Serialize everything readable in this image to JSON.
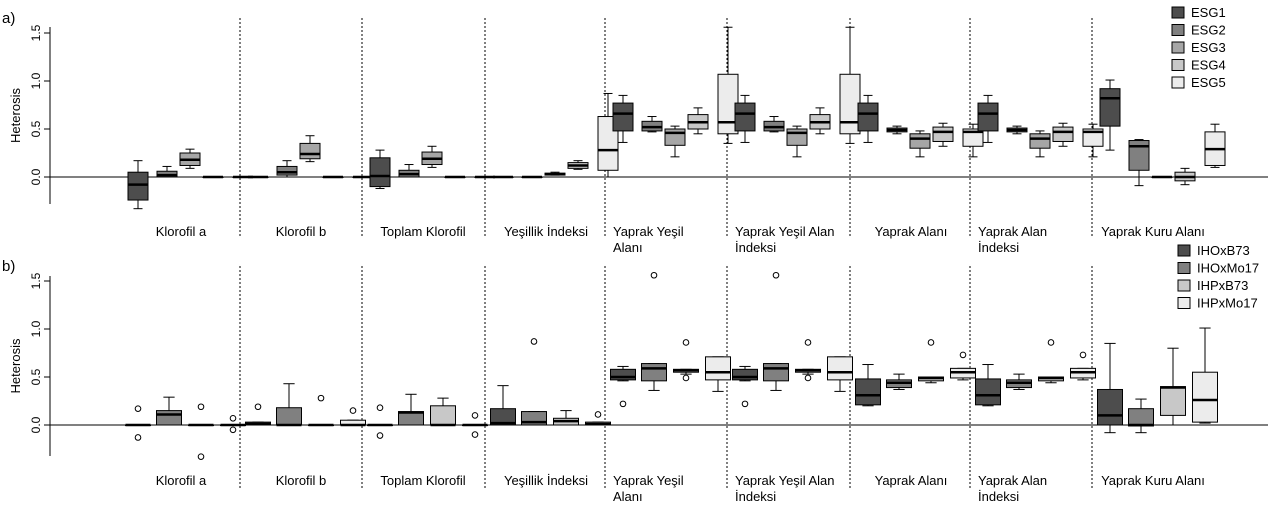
{
  "chart_data": [
    {
      "type": "box",
      "panel_label": "a)",
      "ylabel": "Heterosis",
      "ylim": [
        -0.3,
        1.6
      ],
      "yticks": [
        "0.0",
        "0.5",
        "1.0",
        "1.5"
      ],
      "ytick_values": [
        0,
        0.5,
        1.0,
        1.5
      ],
      "legend_position": "top-right",
      "grid": false,
      "categories": [
        [
          "Klorofil a"
        ],
        [
          "Klorofil b"
        ],
        [
          "Toplam Klorofil"
        ],
        [
          "Yeşillik İndeksi"
        ],
        [
          "Yaprak Yeşil",
          "Alanı"
        ],
        [
          "Yaprak Yeşil Alan",
          "İndeksi"
        ],
        [
          "Yaprak Alanı"
        ],
        [
          "Yaprak Alan",
          "İndeksi"
        ],
        [
          "Yaprak Kuru Alanı"
        ]
      ],
      "series": [
        {
          "name": "ESG1",
          "color": "#4d4d4d"
        },
        {
          "name": "ESG2",
          "color": "#808080"
        },
        {
          "name": "ESG3",
          "color": "#a6a6a6"
        },
        {
          "name": "ESG4",
          "color": "#c8c8c8"
        },
        {
          "name": "ESG5",
          "color": "#ececec"
        }
      ],
      "boxes": [
        [
          {
            "min": -0.33,
            "q1": -0.24,
            "median": -0.08,
            "q3": 0.05,
            "max": 0.17,
            "outliers": []
          },
          {
            "min": 0.0,
            "q1": 0.0,
            "median": 0.02,
            "q3": 0.06,
            "max": 0.11,
            "outliers": []
          },
          {
            "min": 0.09,
            "q1": 0.12,
            "median": 0.18,
            "q3": 0.25,
            "max": 0.29,
            "outliers": []
          },
          {
            "min": 0.0,
            "q1": 0.0,
            "median": 0.0,
            "q3": 0.0,
            "max": 0.0,
            "outliers": []
          },
          {
            "min": 0.0,
            "q1": 0.0,
            "median": 0.0,
            "q3": 0.0,
            "max": 0.0,
            "outliers": []
          }
        ],
        [
          {
            "min": 0.0,
            "q1": 0.0,
            "median": 0.0,
            "q3": 0.0,
            "max": 0.0,
            "outliers": []
          },
          {
            "min": 0.0,
            "q1": 0.02,
            "median": 0.05,
            "q3": 0.11,
            "max": 0.17,
            "outliers": []
          },
          {
            "min": 0.16,
            "q1": 0.19,
            "median": 0.24,
            "q3": 0.35,
            "max": 0.43,
            "outliers": []
          },
          {
            "min": 0.0,
            "q1": 0.0,
            "median": 0.0,
            "q3": 0.0,
            "max": 0.0,
            "outliers": []
          },
          {
            "min": 0.0,
            "q1": 0.0,
            "median": 0.0,
            "q3": 0.0,
            "max": 0.0,
            "outliers": []
          }
        ],
        [
          {
            "min": -0.12,
            "q1": -0.1,
            "median": 0.01,
            "q3": 0.2,
            "max": 0.28,
            "outliers": []
          },
          {
            "min": 0.0,
            "q1": 0.0,
            "median": 0.03,
            "q3": 0.07,
            "max": 0.13,
            "outliers": []
          },
          {
            "min": 0.1,
            "q1": 0.13,
            "median": 0.19,
            "q3": 0.26,
            "max": 0.32,
            "outliers": []
          },
          {
            "min": 0.0,
            "q1": 0.0,
            "median": 0.0,
            "q3": 0.0,
            "max": 0.0,
            "outliers": []
          },
          {
            "min": 0.0,
            "q1": 0.0,
            "median": 0.0,
            "q3": 0.0,
            "max": 0.0,
            "outliers": []
          }
        ],
        [
          {
            "min": 0.0,
            "q1": 0.0,
            "median": 0.0,
            "q3": 0.0,
            "max": 0.0,
            "outliers": []
          },
          {
            "min": 0.0,
            "q1": 0.0,
            "median": 0.0,
            "q3": 0.0,
            "max": 0.0,
            "outliers": []
          },
          {
            "min": 0.02,
            "q1": 0.02,
            "median": 0.03,
            "q3": 0.04,
            "max": 0.05,
            "outliers": []
          },
          {
            "min": 0.08,
            "q1": 0.09,
            "median": 0.12,
            "q3": 0.15,
            "max": 0.17,
            "outliers": []
          },
          {
            "min": 0.0,
            "q1": 0.07,
            "median": 0.28,
            "q3": 0.63,
            "max": 0.87,
            "outliers": []
          }
        ],
        [
          {
            "min": 0.36,
            "q1": 0.48,
            "median": 0.66,
            "q3": 0.77,
            "max": 0.85,
            "outliers": []
          },
          {
            "min": 0.47,
            "q1": 0.48,
            "median": 0.52,
            "q3": 0.58,
            "max": 0.63,
            "outliers": []
          },
          {
            "min": 0.21,
            "q1": 0.33,
            "median": 0.46,
            "q3": 0.5,
            "max": 0.53,
            "outliers": []
          },
          {
            "min": 0.45,
            "q1": 0.5,
            "median": 0.57,
            "q3": 0.65,
            "max": 0.72,
            "outliers": []
          },
          {
            "min": 0.35,
            "q1": 0.45,
            "median": 0.57,
            "q3": 1.07,
            "max": 1.56,
            "outliers": []
          }
        ],
        [
          {
            "min": 0.36,
            "q1": 0.48,
            "median": 0.66,
            "q3": 0.77,
            "max": 0.85,
            "outliers": []
          },
          {
            "min": 0.47,
            "q1": 0.48,
            "median": 0.52,
            "q3": 0.58,
            "max": 0.63,
            "outliers": []
          },
          {
            "min": 0.21,
            "q1": 0.33,
            "median": 0.46,
            "q3": 0.5,
            "max": 0.53,
            "outliers": []
          },
          {
            "min": 0.45,
            "q1": 0.5,
            "median": 0.57,
            "q3": 0.65,
            "max": 0.72,
            "outliers": []
          },
          {
            "min": 0.35,
            "q1": 0.45,
            "median": 0.57,
            "q3": 1.07,
            "max": 1.56,
            "outliers": []
          }
        ],
        [
          {
            "min": 0.36,
            "q1": 0.48,
            "median": 0.66,
            "q3": 0.77,
            "max": 0.85,
            "outliers": []
          },
          {
            "min": 0.45,
            "q1": 0.47,
            "median": 0.49,
            "q3": 0.51,
            "max": 0.53,
            "outliers": []
          },
          {
            "min": 0.21,
            "q1": 0.3,
            "median": 0.4,
            "q3": 0.45,
            "max": 0.48,
            "outliers": []
          },
          {
            "min": 0.32,
            "q1": 0.37,
            "median": 0.47,
            "q3": 0.52,
            "max": 0.56,
            "outliers": []
          },
          {
            "min": 0.21,
            "q1": 0.32,
            "median": 0.47,
            "q3": 0.5,
            "max": 0.55,
            "outliers": []
          }
        ],
        [
          {
            "min": 0.36,
            "q1": 0.48,
            "median": 0.66,
            "q3": 0.77,
            "max": 0.85,
            "outliers": []
          },
          {
            "min": 0.45,
            "q1": 0.47,
            "median": 0.49,
            "q3": 0.51,
            "max": 0.53,
            "outliers": []
          },
          {
            "min": 0.21,
            "q1": 0.3,
            "median": 0.4,
            "q3": 0.45,
            "max": 0.48,
            "outliers": []
          },
          {
            "min": 0.32,
            "q1": 0.37,
            "median": 0.47,
            "q3": 0.52,
            "max": 0.56,
            "outliers": []
          },
          {
            "min": 0.21,
            "q1": 0.32,
            "median": 0.47,
            "q3": 0.5,
            "max": 0.55,
            "outliers": []
          }
        ],
        [
          {
            "min": 0.28,
            "q1": 0.53,
            "median": 0.82,
            "q3": 0.92,
            "max": 1.01,
            "outliers": []
          },
          {
            "min": -0.09,
            "q1": 0.07,
            "median": 0.32,
            "q3": 0.38,
            "max": 0.39,
            "outliers": []
          },
          {
            "min": 0.0,
            "q1": 0.0,
            "median": 0.0,
            "q3": 0.0,
            "max": 0.0,
            "outliers": []
          },
          {
            "min": -0.08,
            "q1": -0.04,
            "median": 0.0,
            "q3": 0.05,
            "max": 0.09,
            "outliers": []
          },
          {
            "min": 0.1,
            "q1": 0.12,
            "median": 0.29,
            "q3": 0.47,
            "max": 0.55,
            "outliers": []
          }
        ]
      ]
    },
    {
      "type": "box",
      "panel_label": "b)",
      "ylabel": "Heterosis",
      "ylim": [
        -0.38,
        1.6
      ],
      "yticks": [
        "0.0",
        "0.5",
        "1.0",
        "1.5"
      ],
      "ytick_values": [
        0,
        0.5,
        1.0,
        1.5
      ],
      "legend_position": "top-right",
      "grid": false,
      "categories": [
        [
          "Klorofil a"
        ],
        [
          "Klorofil b"
        ],
        [
          "Toplam Klorofil"
        ],
        [
          "Yeşillik İndeksi"
        ],
        [
          "Yaprak Yeşil",
          "Alanı"
        ],
        [
          "Yaprak Yeşil Alan",
          "İndeksi"
        ],
        [
          "Yaprak Alanı"
        ],
        [
          "Yaprak Alan",
          "İndeksi"
        ],
        [
          "Yaprak Kuru Alanı"
        ]
      ],
      "series": [
        {
          "name": "IHOxB73",
          "color": "#4d4d4d"
        },
        {
          "name": "IHOxMo17",
          "color": "#808080"
        },
        {
          "name": "IHPxB73",
          "color": "#c8c8c8"
        },
        {
          "name": "IHPxMo17",
          "color": "#ececec"
        }
      ],
      "boxes": [
        [
          {
            "min": 0.0,
            "q1": 0.0,
            "median": 0.0,
            "q3": 0.0,
            "max": 0.0,
            "outliers": [
              0.17,
              -0.13
            ]
          },
          {
            "min": 0.0,
            "q1": 0.0,
            "median": 0.11,
            "q3": 0.15,
            "max": 0.29,
            "outliers": []
          },
          {
            "min": 0.0,
            "q1": 0.0,
            "median": 0.0,
            "q3": 0.0,
            "max": 0.0,
            "outliers": [
              0.19,
              -0.33
            ]
          },
          {
            "min": 0.0,
            "q1": 0.0,
            "median": 0.0,
            "q3": 0.0,
            "max": 0.0,
            "outliers": [
              0.07,
              -0.05
            ]
          }
        ],
        [
          {
            "min": 0.0,
            "q1": 0.0,
            "median": 0.01,
            "q3": 0.03,
            "max": 0.03,
            "outliers": [
              0.19
            ]
          },
          {
            "min": 0.0,
            "q1": 0.0,
            "median": 0.0,
            "q3": 0.18,
            "max": 0.43,
            "outliers": []
          },
          {
            "min": 0.0,
            "q1": 0.0,
            "median": 0.0,
            "q3": 0.0,
            "max": 0.0,
            "outliers": [
              0.28
            ]
          },
          {
            "min": 0.0,
            "q1": 0.0,
            "median": 0.0,
            "q3": 0.05,
            "max": 0.05,
            "outliers": [
              0.15
            ]
          }
        ],
        [
          {
            "min": 0.0,
            "q1": 0.0,
            "median": 0.0,
            "q3": 0.0,
            "max": 0.0,
            "outliers": [
              0.18,
              -0.11
            ]
          },
          {
            "min": 0.0,
            "q1": 0.0,
            "median": 0.13,
            "q3": 0.14,
            "max": 0.32,
            "outliers": []
          },
          {
            "min": 0.0,
            "q1": 0.0,
            "median": 0.0,
            "q3": 0.2,
            "max": 0.28,
            "outliers": []
          },
          {
            "min": 0.0,
            "q1": 0.0,
            "median": 0.0,
            "q3": 0.0,
            "max": 0.0,
            "outliers": [
              0.1,
              -0.1
            ]
          }
        ],
        [
          {
            "min": 0.0,
            "q1": 0.0,
            "median": 0.02,
            "q3": 0.17,
            "max": 0.41,
            "outliers": []
          },
          {
            "min": 0.0,
            "q1": 0.0,
            "median": 0.03,
            "q3": 0.14,
            "max": 0.14,
            "outliers": [
              0.87
            ]
          },
          {
            "min": 0.0,
            "q1": 0.0,
            "median": 0.04,
            "q3": 0.07,
            "max": 0.15,
            "outliers": []
          },
          {
            "min": 0.0,
            "q1": 0.0,
            "median": 0.01,
            "q3": 0.03,
            "max": 0.03,
            "outliers": [
              0.11
            ]
          }
        ],
        [
          {
            "min": 0.46,
            "q1": 0.47,
            "median": 0.5,
            "q3": 0.58,
            "max": 0.61,
            "outliers": [
              0.22
            ]
          },
          {
            "min": 0.36,
            "q1": 0.46,
            "median": 0.59,
            "q3": 0.64,
            "max": 0.64,
            "outliers": [
              1.56
            ]
          },
          {
            "min": 0.53,
            "q1": 0.55,
            "median": 0.57,
            "q3": 0.58,
            "max": 0.58,
            "outliers": [
              0.86,
              0.49
            ]
          },
          {
            "min": 0.35,
            "q1": 0.47,
            "median": 0.55,
            "q3": 0.71,
            "max": 0.71,
            "outliers": []
          }
        ],
        [
          {
            "min": 0.46,
            "q1": 0.47,
            "median": 0.5,
            "q3": 0.58,
            "max": 0.61,
            "outliers": [
              0.22
            ]
          },
          {
            "min": 0.36,
            "q1": 0.46,
            "median": 0.59,
            "q3": 0.64,
            "max": 0.64,
            "outliers": [
              1.56
            ]
          },
          {
            "min": 0.53,
            "q1": 0.55,
            "median": 0.57,
            "q3": 0.58,
            "max": 0.58,
            "outliers": [
              0.86,
              0.49
            ]
          },
          {
            "min": 0.35,
            "q1": 0.47,
            "median": 0.55,
            "q3": 0.71,
            "max": 0.71,
            "outliers": []
          }
        ],
        [
          {
            "min": 0.2,
            "q1": 0.21,
            "median": 0.31,
            "q3": 0.48,
            "max": 0.63,
            "outliers": []
          },
          {
            "min": 0.37,
            "q1": 0.39,
            "median": 0.44,
            "q3": 0.47,
            "max": 0.53,
            "outliers": []
          },
          {
            "min": 0.44,
            "q1": 0.46,
            "median": 0.49,
            "q3": 0.5,
            "max": 0.5,
            "outliers": [
              0.86
            ]
          },
          {
            "min": 0.47,
            "q1": 0.49,
            "median": 0.55,
            "q3": 0.59,
            "max": 0.59,
            "outliers": [
              0.73
            ]
          }
        ],
        [
          {
            "min": 0.2,
            "q1": 0.21,
            "median": 0.31,
            "q3": 0.48,
            "max": 0.63,
            "outliers": []
          },
          {
            "min": 0.37,
            "q1": 0.39,
            "median": 0.44,
            "q3": 0.47,
            "max": 0.53,
            "outliers": []
          },
          {
            "min": 0.44,
            "q1": 0.46,
            "median": 0.49,
            "q3": 0.5,
            "max": 0.5,
            "outliers": [
              0.86
            ]
          },
          {
            "min": 0.47,
            "q1": 0.49,
            "median": 0.55,
            "q3": 0.59,
            "max": 0.59,
            "outliers": [
              0.73
            ]
          }
        ],
        [
          {
            "min": -0.08,
            "q1": 0.0,
            "median": 0.1,
            "q3": 0.37,
            "max": 0.85,
            "outliers": []
          },
          {
            "min": -0.08,
            "q1": -0.01,
            "median": 0.0,
            "q3": 0.17,
            "max": 0.27,
            "outliers": []
          },
          {
            "min": 0.0,
            "q1": 0.1,
            "median": 0.39,
            "q3": 0.4,
            "max": 0.8,
            "outliers": []
          },
          {
            "min": 0.02,
            "q1": 0.03,
            "median": 0.26,
            "q3": 0.55,
            "max": 1.01,
            "outliers": []
          }
        ]
      ]
    }
  ]
}
